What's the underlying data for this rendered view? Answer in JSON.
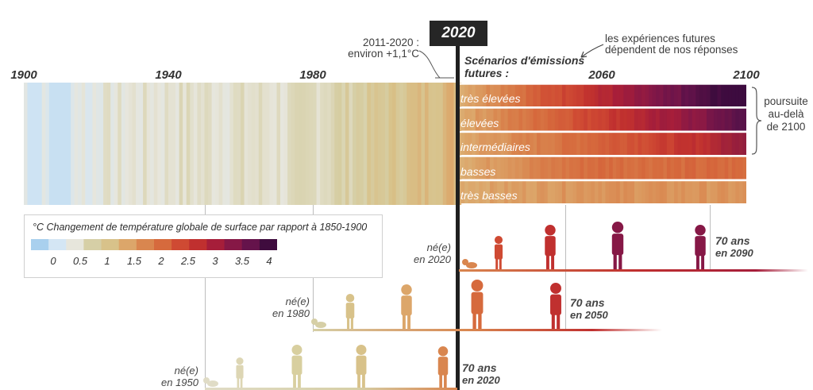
{
  "axis": {
    "start_year": 1900,
    "end_year": 2100,
    "tick_labels": [
      "1900",
      "1940",
      "1980",
      "2060",
      "2100"
    ]
  },
  "highlight_year": "2020",
  "annotations": {
    "past_label": "2011-2020 :",
    "past_value": "environ +1,1°C",
    "future_note_line1": "les expériences futures",
    "future_note_line2": "dépendent de nos réponses",
    "scenario_header_line1": "Scénarios d'émissions",
    "scenario_header_line2": "futures :",
    "beyond_line1": "poursuite",
    "beyond_line2": "au-delà",
    "beyond_line3": "de 2100"
  },
  "scenarios": [
    {
      "label": "très élevées",
      "end_color": "#3b0a40"
    },
    {
      "label": "élevées",
      "end_color": "#4e1248"
    },
    {
      "label": "intermédiaires",
      "end_color": "#7a1844"
    },
    {
      "label": "basses",
      "end_color": "#c4302a"
    },
    {
      "label": "très basses",
      "end_color": "#d04a2a"
    }
  ],
  "legend": {
    "title": "°C Changement de température globale de surface par rapport à 1850-1900",
    "ticks": [
      "0",
      "0.5",
      "1",
      "1.5",
      "2",
      "2.5",
      "3",
      "3.5",
      "4"
    ],
    "colors": [
      "#a9d0ee",
      "#d4e6f4",
      "#e7e6dc",
      "#d6cfa6",
      "#d8c28a",
      "#dca66a",
      "#d9864f",
      "#d66a3d",
      "#cf4a33",
      "#c0302f",
      "#a61e3a",
      "#861846",
      "#65134b",
      "#3f0c3e"
    ]
  },
  "generations": [
    {
      "born_label": "né(e)",
      "born_year": "en 2020",
      "age_label": "70 ans",
      "age_year": "en 2090"
    },
    {
      "born_label": "né(e)",
      "born_year": "en 1980",
      "age_label": "70 ans",
      "age_year": "en 2050"
    },
    {
      "born_label": "né(e)",
      "born_year": "en 1950",
      "age_label": "70 ans",
      "age_year": "en 2020"
    }
  ],
  "colors": {
    "cold": "#a9d0ee",
    "neutral": "#dcd8c0",
    "warm": "#d9864f",
    "hot": "#c0302f",
    "extreme": "#3f0c3e",
    "marker": "#262626"
  }
}
